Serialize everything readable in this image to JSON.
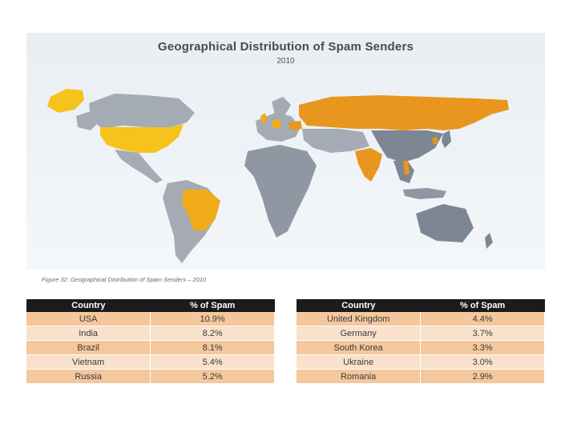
{
  "map": {
    "title": "Geographical Distribution of Spam Senders",
    "subtitle": "2010",
    "colors": {
      "ocean": "#eef2f6",
      "land_default": "#9aa2ad",
      "land_dark": "#7d8693",
      "highlight_yellow": "#f6c21c",
      "highlight_orange": "#e8961e"
    }
  },
  "caption": "Figure 32: Geographical Distribution of Spam Senders – 2010",
  "tables": {
    "left": {
      "headers": [
        "Country",
        "% of Spam"
      ],
      "rows": [
        [
          "USA",
          "10.9%"
        ],
        [
          "India",
          "8.2%"
        ],
        [
          "Brazil",
          "8.1%"
        ],
        [
          "Vietnam",
          "5.4%"
        ],
        [
          "Russia",
          "5.2%"
        ]
      ]
    },
    "right": {
      "headers": [
        "Country",
        "% of Spam"
      ],
      "rows": [
        [
          "United Kingdom",
          "4.4%"
        ],
        [
          "Germany",
          "3.7%"
        ],
        [
          "South Korea",
          "3.3%"
        ],
        [
          "Ukraine",
          "3.0%"
        ],
        [
          "Romania",
          "2.9%"
        ]
      ]
    }
  }
}
